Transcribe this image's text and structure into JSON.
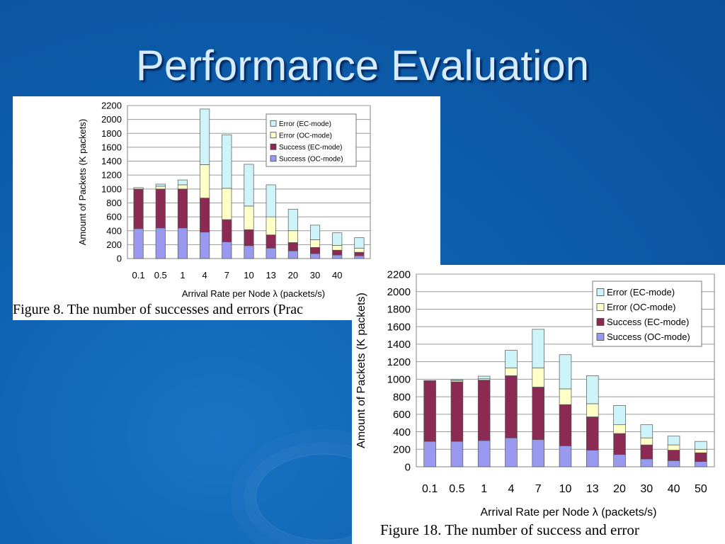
{
  "slide": {
    "title": "Performance Evaluation"
  },
  "colors": {
    "error_ec": "#cdf4f8",
    "error_oc": "#ffffc8",
    "success_ec": "#8b2a52",
    "success_oc": "#9999f0",
    "background": "#0d5fae",
    "title": "#d8ecff"
  },
  "chart_data": [
    {
      "type": "bar",
      "stacked": true,
      "caption": "Figure 8. The number of successes and errors (Prac",
      "xlabel": "Arrival Rate per Node λ (packets/s)",
      "ylabel": "Amount of Packets (K packets)",
      "ylim": [
        0,
        2200
      ],
      "yticks": [
        "0",
        "200",
        "400",
        "600",
        "800",
        "1000",
        "1200",
        "1400",
        "1600",
        "1800",
        "2000",
        "2200"
      ],
      "grid": true,
      "legend_position": "top-right",
      "categories": [
        "0.1",
        "0.5",
        "1",
        "4",
        "7",
        "10",
        "13",
        "20",
        "30",
        "40",
        ""
      ],
      "series": [
        {
          "name": "Success (OC-mode)",
          "color_key": "success_oc",
          "values": [
            430,
            440,
            440,
            380,
            240,
            185,
            150,
            110,
            70,
            50,
            40
          ]
        },
        {
          "name": "Success (EC-mode)",
          "color_key": "success_ec",
          "values": [
            570,
            560,
            560,
            490,
            320,
            230,
            190,
            120,
            90,
            70,
            50
          ]
        },
        {
          "name": "Error (OC-mode)",
          "color_key": "error_oc",
          "values": [
            20,
            40,
            60,
            480,
            450,
            340,
            260,
            170,
            110,
            70,
            60
          ]
        },
        {
          "name": "Error (EC-mode)",
          "color_key": "error_ec",
          "values": [
            0,
            30,
            70,
            800,
            770,
            600,
            460,
            310,
            210,
            180,
            150
          ]
        }
      ],
      "legend_order": [
        "Error (EC-mode)",
        "Error (OC-mode)",
        "Success (EC-mode)",
        "Success (OC-mode)"
      ]
    },
    {
      "type": "bar",
      "stacked": true,
      "caption": "Figure 18. The number of success and error",
      "xlabel": "Arrival Rate per Node λ (packets/s)",
      "ylabel": "Amount of Packets (K packets)",
      "ylim": [
        0,
        2200
      ],
      "yticks": [
        "0",
        "200",
        "400",
        "600",
        "800",
        "1000",
        "1200",
        "1400",
        "1600",
        "1800",
        "2000",
        "2200"
      ],
      "grid": true,
      "legend_position": "top-right",
      "categories": [
        "0.1",
        "0.5",
        "1",
        "4",
        "7",
        "10",
        "13",
        "20",
        "30",
        "40",
        "50"
      ],
      "series": [
        {
          "name": "Success (OC-mode)",
          "color_key": "success_oc",
          "values": [
            290,
            290,
            300,
            330,
            310,
            240,
            190,
            140,
            90,
            70,
            60
          ]
        },
        {
          "name": "Success (EC-mode)",
          "color_key": "success_ec",
          "values": [
            690,
            680,
            690,
            710,
            600,
            470,
            380,
            240,
            160,
            120,
            100
          ]
        },
        {
          "name": "Error (OC-mode)",
          "color_key": "error_oc",
          "values": [
            5,
            15,
            15,
            90,
            220,
            180,
            150,
            100,
            80,
            60,
            40
          ]
        },
        {
          "name": "Error (EC-mode)",
          "color_key": "error_ec",
          "values": [
            0,
            10,
            30,
            200,
            440,
            390,
            320,
            220,
            150,
            100,
            90
          ]
        }
      ],
      "legend_order": [
        "Error (EC-mode)",
        "Error (OC-mode)",
        "Success (EC-mode)",
        "Success (OC-mode)"
      ]
    }
  ]
}
